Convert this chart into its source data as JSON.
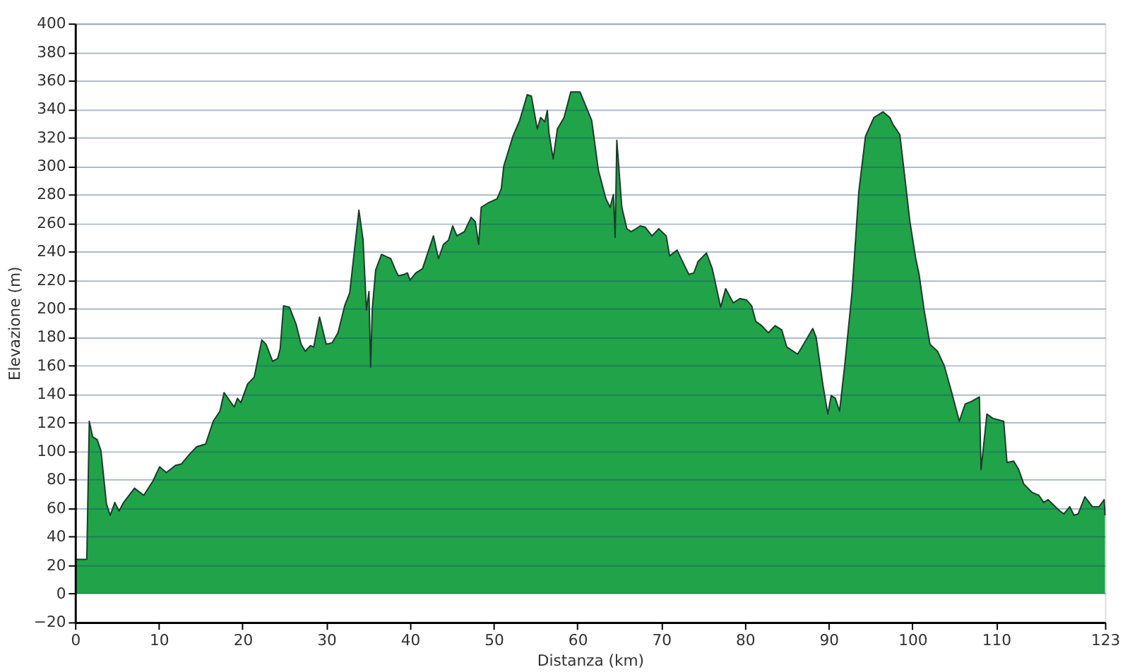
{
  "chart_data": {
    "type": "area",
    "xlabel": "Distanza   (km)",
    "ylabel": "Elevazione (m)",
    "x": [
      0,
      1.4,
      1.7,
      2.1,
      2.65,
      3.1,
      3.75,
      4.2,
      4.75,
      5.25,
      5.8,
      7.1,
      8.2,
      9.3,
      10.1,
      10.9,
      12.0,
      12.7,
      13.7,
      14.5,
      15.6,
      16.5,
      17.3,
      17.8,
      19.0,
      19.4,
      19.8,
      20.6,
      21.4,
      22.3,
      22.8,
      23.6,
      24.2,
      24.5,
      24.9,
      25.6,
      26.4,
      27.0,
      27.5,
      28.1,
      28.5,
      29.2,
      30.0,
      30.7,
      31.4,
      32.2,
      32.8,
      33.9,
      34.4,
      34.8,
      35.1,
      35.3,
      35.5,
      35.9,
      36.6,
      37.7,
      38.2,
      38.6,
      39.3,
      39.7,
      40.0,
      40.7,
      41.5,
      42.8,
      43.4,
      44.0,
      44.6,
      45.1,
      45.6,
      46.5,
      47.3,
      47.8,
      48.2,
      48.5,
      49.3,
      50.4,
      50.9,
      51.2,
      52.3,
      53.1,
      54.0,
      54.5,
      55.2,
      55.6,
      56.1,
      56.4,
      56.6,
      57.1,
      57.6,
      58.4,
      59.2,
      60.3,
      61.7,
      62.5,
      63.4,
      63.9,
      64.3,
      64.5,
      64.7,
      65.3,
      65.9,
      66.4,
      67.0,
      67.5,
      68.1,
      68.9,
      69.7,
      70.6,
      71.0,
      71.9,
      72.8,
      73.3,
      73.9,
      74.4,
      75.4,
      76.1,
      77.1,
      77.7,
      78.6,
      79.4,
      80.2,
      80.8,
      81.3,
      82.0,
      82.8,
      83.6,
      84.4,
      85.0,
      86.3,
      87.1,
      88.1,
      88.5,
      89.3,
      89.9,
      90.3,
      90.8,
      91.3,
      91.9,
      92.8,
      93.6,
      94.4,
      95.4,
      96.5,
      97.3,
      97.7,
      98.5,
      99.0,
      99.7,
      100.4,
      100.8,
      101.4,
      102.1,
      103.0,
      103.8,
      104.7,
      105.6,
      106.3,
      107.1,
      108.0,
      108.2,
      108.9,
      109.6,
      110.9,
      111.3,
      112.1,
      112.7,
      113.3,
      114.3,
      115.1,
      115.7,
      116.2,
      117.6,
      118.1,
      118.8,
      119.3,
      119.8,
      120.6,
      121.5,
      122.3,
      122.9,
      123
    ],
    "series": [
      {
        "color": "#21a34a",
        "values": [
          24,
          24,
          121,
          110,
          108,
          100,
          63,
          55,
          64,
          58,
          64,
          74,
          69,
          79,
          89,
          85,
          90,
          91,
          98,
          103,
          105,
          121,
          128,
          141,
          131,
          137,
          134,
          147,
          152,
          178,
          175,
          163,
          165,
          172,
          202,
          201,
          189,
          175,
          170,
          174,
          173,
          194,
          175,
          176,
          183,
          202,
          211,
          269,
          248,
          199,
          212,
          159,
          200,
          227,
          238,
          235,
          228,
          223,
          224,
          225,
          220,
          225,
          228,
          251,
          235,
          245,
          248,
          258,
          251,
          254,
          264,
          261,
          245,
          271,
          274,
          277,
          284,
          300,
          321,
          332,
          350,
          349,
          326,
          334,
          331,
          339,
          323,
          305,
          326,
          334,
          352,
          352,
          332,
          297,
          277,
          271,
          280,
          250,
          318,
          271,
          256,
          254,
          256,
          258,
          257,
          251,
          256,
          251,
          237,
          241,
          230,
          224,
          225,
          233,
          239,
          228,
          201,
          214,
          204,
          207,
          206,
          202,
          191,
          188,
          183,
          188,
          185,
          173,
          168,
          176,
          186,
          180,
          147,
          126,
          139,
          137,
          128,
          159,
          212,
          282,
          321,
          334,
          338,
          334,
          329,
          322,
          297,
          261,
          235,
          224,
          199,
          175,
          170,
          160,
          141,
          121,
          133,
          135,
          138,
          87,
          126,
          123,
          121,
          92,
          93,
          87,
          77,
          71,
          69,
          64,
          66,
          58,
          56,
          61,
          55,
          56,
          68,
          61,
          61,
          66,
          55
        ]
      }
    ],
    "xlim": [
      0,
      123
    ],
    "xticks": [
      0,
      10,
      20,
      30,
      40,
      50,
      60,
      70,
      80,
      90,
      100,
      110,
      123
    ],
    "ylim": [
      -20,
      400
    ],
    "yticks": [
      -20,
      0,
      20,
      40,
      60,
      80,
      100,
      120,
      140,
      160,
      180,
      200,
      220,
      240,
      260,
      280,
      300,
      320,
      340,
      360,
      380,
      400
    ],
    "grid": "y"
  }
}
